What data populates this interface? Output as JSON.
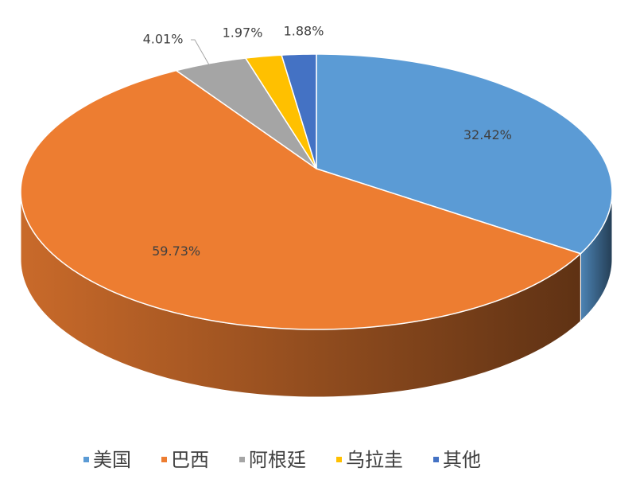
{
  "chart_data": {
    "type": "pie",
    "categories": [
      "美国",
      "巴西",
      "阿根廷",
      "乌拉圭",
      "其他"
    ],
    "values": [
      32.42,
      59.73,
      4.01,
      1.97,
      1.88
    ],
    "value_labels": [
      "32.42%",
      "59.73%",
      "4.01%",
      "1.97%",
      "1.88%"
    ],
    "colors": [
      "#5b9bd5",
      "#ed7d31",
      "#a5a5a5",
      "#ffc000",
      "#4472c4"
    ],
    "legend": "bottom"
  }
}
